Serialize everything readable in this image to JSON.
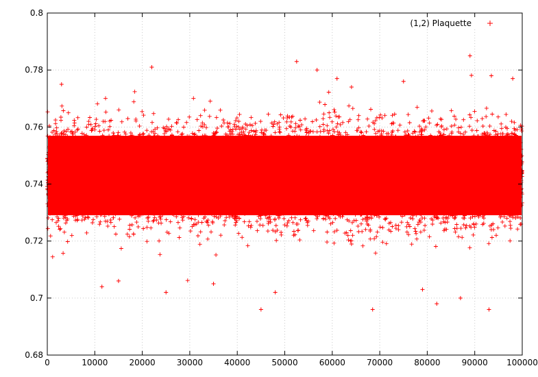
{
  "chart_data": {
    "type": "scatter",
    "xlim": [
      0,
      100000
    ],
    "ylim": [
      0.68,
      0.8
    ],
    "x_ticks": [
      0,
      10000,
      20000,
      30000,
      40000,
      50000,
      60000,
      70000,
      80000,
      90000,
      100000
    ],
    "x_tick_labels": [
      "0",
      "10000",
      "20000",
      "30000",
      "40000",
      "50000",
      "60000",
      "70000",
      "80000",
      "90000",
      "100000"
    ],
    "y_ticks": [
      0.68,
      0.7,
      0.72,
      0.74,
      0.76,
      0.78,
      0.8
    ],
    "y_tick_labels": [
      "0.68",
      "0.7",
      "0.72",
      "0.74",
      "0.76",
      "0.78",
      "0.8"
    ],
    "grid": true,
    "marker": "plus",
    "color": "#ff0000",
    "legend": {
      "position": "top-right",
      "entries": [
        "(1,2) Plaquette"
      ]
    },
    "series": [
      {
        "name": "(1,2) Plaquette",
        "distribution": {
          "n_points": 100000,
          "mean": 0.743,
          "std": 0.0082,
          "x_min": 0,
          "x_max": 100000
        },
        "outliers": [
          [
            22000,
            0.781
          ],
          [
            52500,
            0.783
          ],
          [
            56800,
            0.78
          ],
          [
            89000,
            0.785
          ],
          [
            93500,
            0.778
          ],
          [
            45000,
            0.696
          ],
          [
            68500,
            0.696
          ],
          [
            87000,
            0.7
          ],
          [
            93000,
            0.696
          ],
          [
            82000,
            0.698
          ],
          [
            25000,
            0.702
          ],
          [
            48000,
            0.702
          ],
          [
            11500,
            0.704
          ],
          [
            35000,
            0.705
          ],
          [
            79000,
            0.703
          ],
          [
            15000,
            0.706
          ],
          [
            61000,
            0.777
          ],
          [
            75000,
            0.776
          ],
          [
            3000,
            0.775
          ],
          [
            98000,
            0.777
          ]
        ]
      }
    ]
  }
}
